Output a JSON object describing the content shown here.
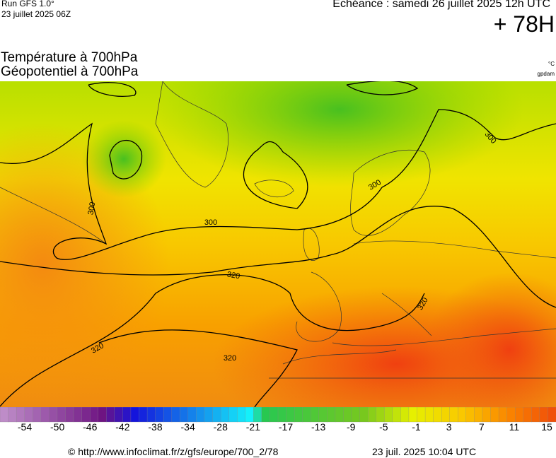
{
  "header": {
    "model": "Run GFS 1.0°",
    "run": "23 juillet 2025 06Z",
    "echeance": "Echéance : samedi 26 juillet 2025 12h UTC",
    "lead": "+ 78H",
    "title1": "Température à 700hPa",
    "title2": "Géopotentiel à 700hPa",
    "unit1": "°C",
    "unit2": "gpdam"
  },
  "map": {
    "contour_labels": [
      300,
      300,
      300,
      300,
      320,
      320,
      320,
      320
    ]
  },
  "legend": {
    "ticks": [
      -54,
      -50,
      -46,
      -42,
      -38,
      -34,
      -28,
      -21,
      -17,
      -13,
      -9,
      -5,
      -1,
      3,
      7,
      11,
      15
    ]
  },
  "footer": {
    "source": "© http://www.infoclimat.fr/z/gfs/europe/700_2/78",
    "timestamp": "23 juil. 2025 10:04 UTC"
  }
}
